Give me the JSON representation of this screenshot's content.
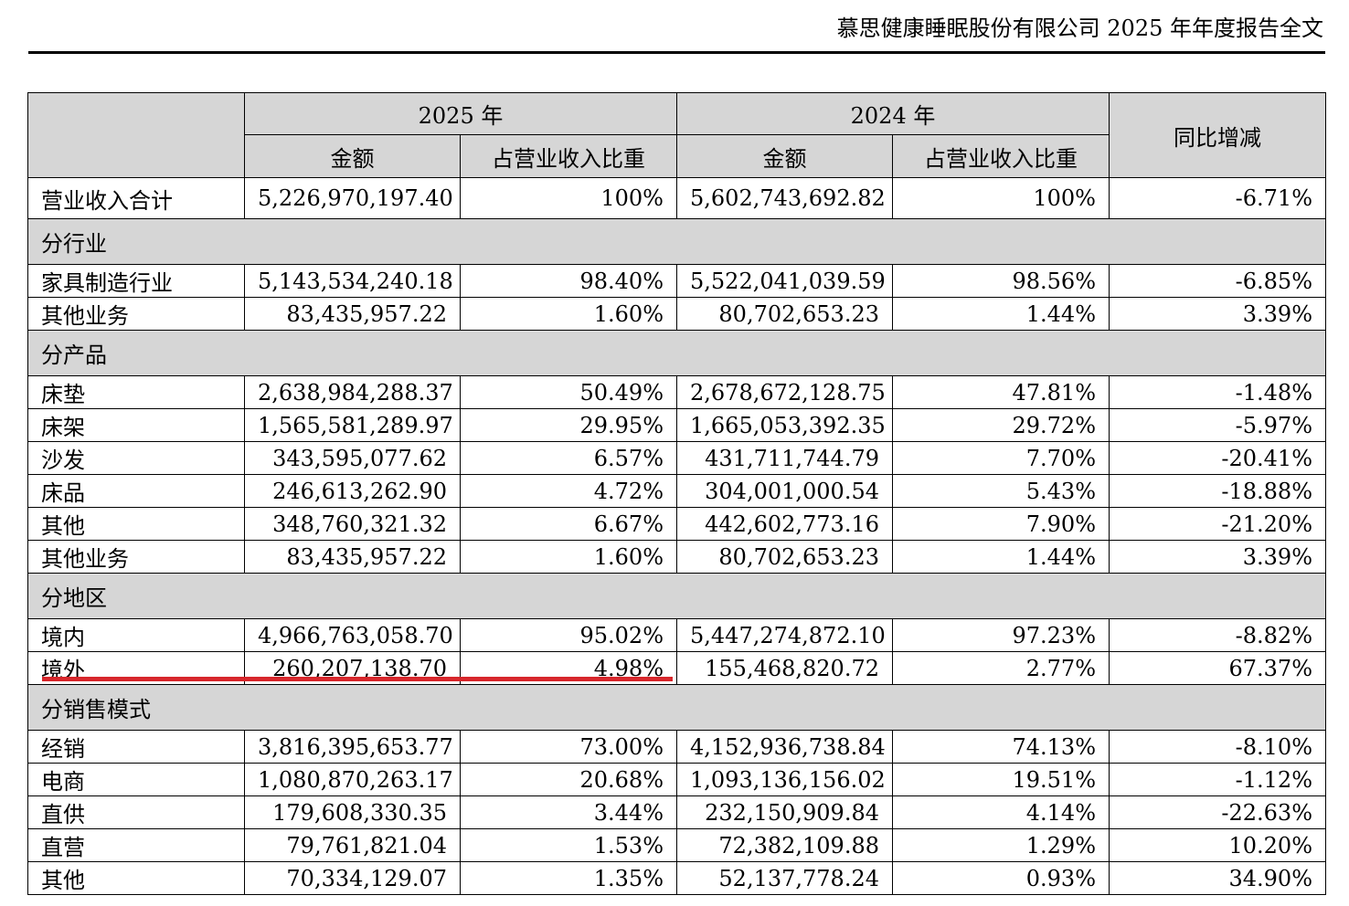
{
  "header": {
    "title": "慕思健康睡眠股份有限公司 2025 年年度报告全文"
  },
  "table": {
    "year_2025": "2025 年",
    "year_2024": "2024 年",
    "amount_label": "金额",
    "ratio_label": "占营业收入比重",
    "yoy_label": "同比增减",
    "total": {
      "label": "营业收入合计",
      "amount_2025": "5,226,970,197.40",
      "ratio_2025": "100%",
      "amount_2024": "5,602,743,692.82",
      "ratio_2024": "100%",
      "yoy": "-6.71%"
    },
    "sections": [
      {
        "title": "分行业",
        "rows": [
          {
            "label": "家具制造行业",
            "amount_2025": "5,143,534,240.18",
            "ratio_2025": "98.40%",
            "amount_2024": "5,522,041,039.59",
            "ratio_2024": "98.56%",
            "yoy": "-6.85%"
          },
          {
            "label": "其他业务",
            "amount_2025": "83,435,957.22",
            "ratio_2025": "1.60%",
            "amount_2024": "80,702,653.23",
            "ratio_2024": "1.44%",
            "yoy": "3.39%"
          }
        ]
      },
      {
        "title": "分产品",
        "rows": [
          {
            "label": "床垫",
            "amount_2025": "2,638,984,288.37",
            "ratio_2025": "50.49%",
            "amount_2024": "2,678,672,128.75",
            "ratio_2024": "47.81%",
            "yoy": "-1.48%"
          },
          {
            "label": "床架",
            "amount_2025": "1,565,581,289.97",
            "ratio_2025": "29.95%",
            "amount_2024": "1,665,053,392.35",
            "ratio_2024": "29.72%",
            "yoy": "-5.97%"
          },
          {
            "label": "沙发",
            "amount_2025": "343,595,077.62",
            "ratio_2025": "6.57%",
            "amount_2024": "431,711,744.79",
            "ratio_2024": "7.70%",
            "yoy": "-20.41%"
          },
          {
            "label": "床品",
            "amount_2025": "246,613,262.90",
            "ratio_2025": "4.72%",
            "amount_2024": "304,001,000.54",
            "ratio_2024": "5.43%",
            "yoy": "-18.88%"
          },
          {
            "label": "其他",
            "amount_2025": "348,760,321.32",
            "ratio_2025": "6.67%",
            "amount_2024": "442,602,773.16",
            "ratio_2024": "7.90%",
            "yoy": "-21.20%"
          },
          {
            "label": "其他业务",
            "amount_2025": "83,435,957.22",
            "ratio_2025": "1.60%",
            "amount_2024": "80,702,653.23",
            "ratio_2024": "1.44%",
            "yoy": "3.39%"
          }
        ]
      },
      {
        "title": "分地区",
        "rows": [
          {
            "label": "境内",
            "amount_2025": "4,966,763,058.70",
            "ratio_2025": "95.02%",
            "amount_2024": "5,447,274,872.10",
            "ratio_2024": "97.23%",
            "yoy": "-8.82%"
          },
          {
            "label": "境外",
            "amount_2025": "260,207,138.70",
            "ratio_2025": "4.98%",
            "amount_2024": "155,468,820.72",
            "ratio_2024": "2.77%",
            "yoy": "67.37%"
          }
        ]
      },
      {
        "title": "分销售模式",
        "rows": [
          {
            "label": "经销",
            "amount_2025": "3,816,395,653.77",
            "ratio_2025": "73.00%",
            "amount_2024": "4,152,936,738.84",
            "ratio_2024": "74.13%",
            "yoy": "-8.10%"
          },
          {
            "label": "电商",
            "amount_2025": "1,080,870,263.17",
            "ratio_2025": "20.68%",
            "amount_2024": "1,093,136,156.02",
            "ratio_2024": "19.51%",
            "yoy": "-1.12%"
          },
          {
            "label": "直供",
            "amount_2025": "179,608,330.35",
            "ratio_2025": "3.44%",
            "amount_2024": "232,150,909.84",
            "ratio_2024": "4.14%",
            "yoy": "-22.63%"
          },
          {
            "label": "直营",
            "amount_2025": "79,761,821.04",
            "ratio_2025": "1.53%",
            "amount_2024": "72,382,109.88",
            "ratio_2024": "1.29%",
            "yoy": "10.20%"
          },
          {
            "label": "其他",
            "amount_2025": "70,334,129.07",
            "ratio_2025": "1.35%",
            "amount_2024": "52,137,778.24",
            "ratio_2024": "0.93%",
            "yoy": "34.90%"
          }
        ]
      }
    ]
  },
  "colors": {
    "header_fill": "#d6d6d6",
    "underline": "#d7262b"
  }
}
